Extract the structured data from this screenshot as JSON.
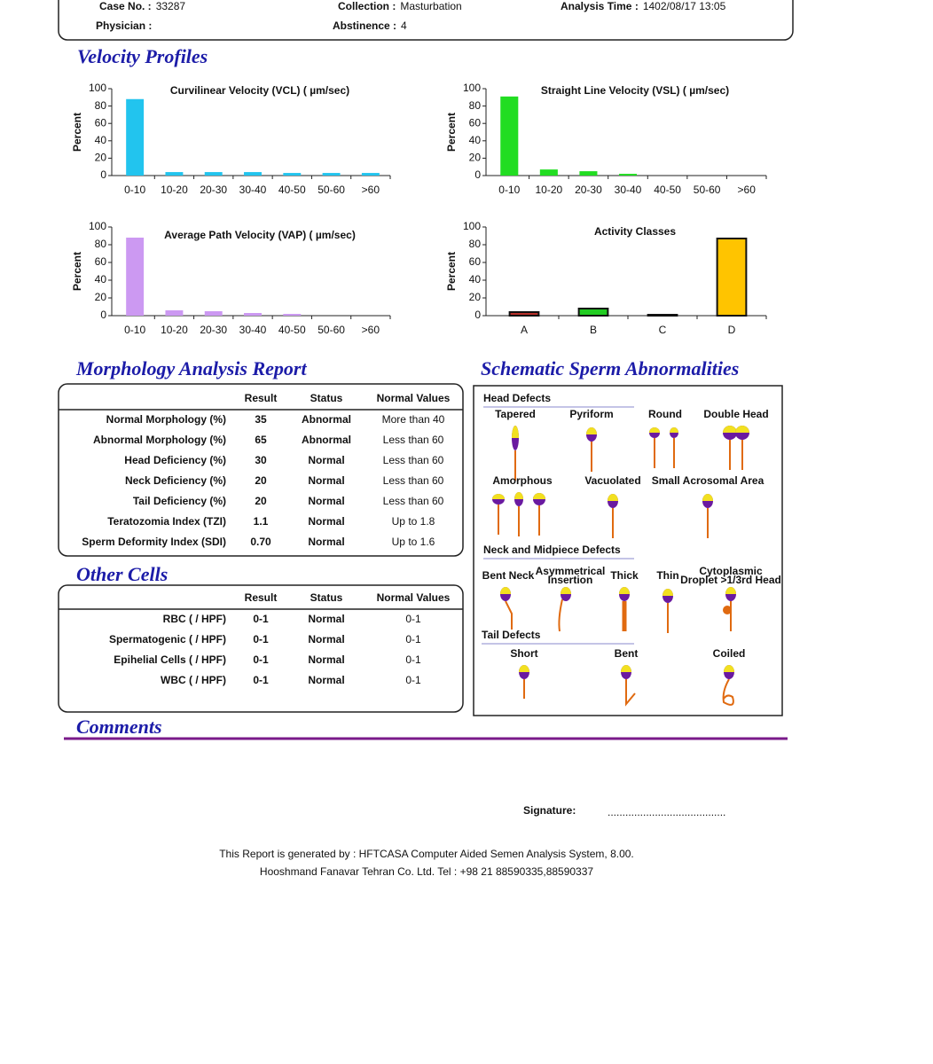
{
  "header": {
    "fields": [
      {
        "label": "Case No. :",
        "value": "33287"
      },
      {
        "label": "Physician :",
        "value": ""
      },
      {
        "label": "Collection :",
        "value": "Masturbation"
      },
      {
        "label": "Abstinence :",
        "value": "4"
      },
      {
        "label": "Analysis Time :",
        "value": "1402/08/17 13:05"
      }
    ]
  },
  "velocity_title": "Velocity Profiles",
  "chart_data": [
    {
      "type": "bar",
      "title": "Curvilinear Velocity (VCL) ( µm/sec)",
      "ylabel": "Percent",
      "categories": [
        "0-10",
        "10-20",
        "20-30",
        "30-40",
        "40-50",
        "50-60",
        ">60"
      ],
      "values": [
        88,
        4,
        4,
        4,
        3,
        3,
        3
      ],
      "color": "#22c4ee",
      "ylim": [
        0,
        100
      ],
      "yticks": [
        0,
        20,
        40,
        60,
        80,
        100
      ]
    },
    {
      "type": "bar",
      "title": "Straight Line Velocity (VSL) ( µm/sec)",
      "ylabel": "Percent",
      "categories": [
        "0-10",
        "10-20",
        "20-30",
        "30-40",
        "40-50",
        "50-60",
        ">60"
      ],
      "values": [
        91,
        7,
        5,
        2,
        0,
        0,
        0
      ],
      "color": "#22dd22",
      "ylim": [
        0,
        100
      ],
      "yticks": [
        0,
        20,
        40,
        60,
        80,
        100
      ]
    },
    {
      "type": "bar",
      "title": "Average Path Velocity (VAP) ( µm/sec)",
      "ylabel": "Percent",
      "categories": [
        "0-10",
        "10-20",
        "20-30",
        "30-40",
        "40-50",
        "50-60",
        ">60"
      ],
      "values": [
        88,
        6,
        5,
        3,
        2,
        0,
        0
      ],
      "color": "#cc99f2",
      "ylim": [
        0,
        100
      ],
      "yticks": [
        0,
        20,
        40,
        60,
        80,
        100
      ]
    },
    {
      "type": "bar",
      "title": "Activity Classes",
      "ylabel": "Percent",
      "categories": [
        "A",
        "B",
        "C",
        "D"
      ],
      "values": [
        4,
        8,
        1,
        87
      ],
      "colors": [
        "#b8302a",
        "#22cc22",
        "#888888",
        "#ffc400"
      ],
      "outline": true,
      "ylim": [
        0,
        100
      ],
      "yticks": [
        0,
        20,
        40,
        60,
        80,
        100
      ]
    }
  ],
  "morphology": {
    "title": "Morphology Analysis Report",
    "columns": [
      "Result",
      "Status",
      "Normal Values"
    ],
    "rows": [
      {
        "label": "Normal Morphology (%)",
        "result": "35",
        "status": "Abnormal",
        "normal": "More than 40",
        "color": "#cc1a1a"
      },
      {
        "label": "Abnormal Morphology (%)",
        "result": "65",
        "status": "Abnormal",
        "normal": "Less than 60",
        "color": "#cc1a1a"
      },
      {
        "label": "Head Deficiency (%)",
        "result": "30",
        "status": "Normal",
        "normal": "Less than 60",
        "color": "#1a8a1a"
      },
      {
        "label": "Neck Deficiency (%)",
        "result": "20",
        "status": "Normal",
        "normal": "Less than 60",
        "color": "#1a8a1a"
      },
      {
        "label": "Tail Deficiency (%)",
        "result": "20",
        "status": "Normal",
        "normal": "Less than 60",
        "color": "#1a8a1a"
      },
      {
        "label": "Teratozomia Index (TZI)",
        "result": "1.1",
        "status": "Normal",
        "normal": "Up to 1.8",
        "color": "#1a8a1a"
      },
      {
        "label": "Sperm Deformity Index (SDI)",
        "result": "0.70",
        "status": "Normal",
        "normal": "Up to 1.6",
        "color": "#1a8a1a"
      }
    ]
  },
  "other_cells": {
    "title": "Other Cells",
    "columns": [
      "Result",
      "Status",
      "Normal Values"
    ],
    "rows": [
      {
        "label": "RBC ( / HPF)",
        "result": "0-1",
        "status": "Normal",
        "normal": "0-1",
        "color": "#1a8a1a"
      },
      {
        "label": "Spermatogenic ( / HPF)",
        "result": "0-1",
        "status": "Normal",
        "normal": "0-1",
        "color": "#1a8a1a"
      },
      {
        "label": "Epihelial Cells ( / HPF)",
        "result": "0-1",
        "status": "Normal",
        "normal": "0-1",
        "color": "#1a8a1a"
      },
      {
        "label": "WBC ( / HPF)",
        "result": "0-1",
        "status": "Normal",
        "normal": "0-1",
        "color": "#1a8a1a"
      }
    ]
  },
  "schematic": {
    "title": "Schematic Sperm Abnormalities",
    "groups": [
      {
        "name": "Head Defects",
        "items": [
          "Tapered",
          "Pyriform",
          "Round",
          "Double Head",
          "Amorphous",
          "Vacuolated",
          "Small Acrosomal Area"
        ]
      },
      {
        "name": "Neck and Midpiece Defects",
        "items": [
          "Bent Neck",
          "Asymmetrical Insertion",
          "Thick",
          "Thin",
          "Cytoplasmic Droplet >1/3rd Head"
        ]
      },
      {
        "name": "Tail Defects",
        "items": [
          "Short",
          "Bent",
          "Coiled"
        ]
      }
    ]
  },
  "comments_title": "Comments",
  "signature_label": "Signature:",
  "signature_line": "........................................",
  "footer": [
    "This Report is generated by : HFTCASA Computer Aided Semen Analysis System, 8.00.",
    "Hooshmand Fanavar Tehran Co. Ltd.    Tel : +98 21 88590335,88590337"
  ]
}
